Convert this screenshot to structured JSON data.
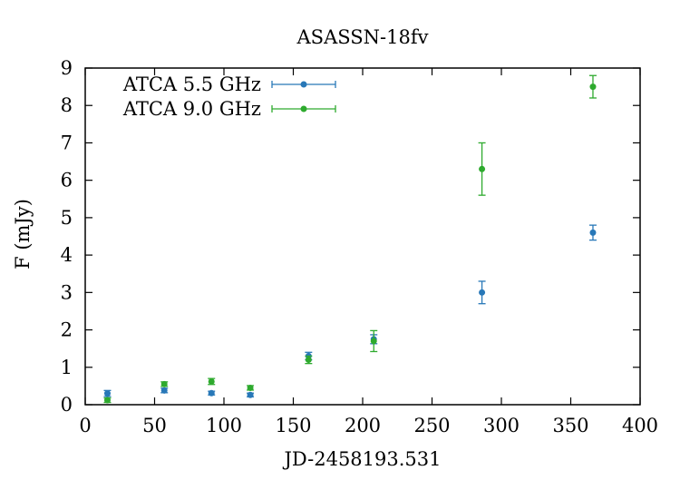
{
  "chart_data": {
    "type": "scatter",
    "title": "ASASSN-18fv",
    "xlabel": "JD-2458193.531",
    "ylabel": "F (mJy)",
    "xlim": [
      0,
      400
    ],
    "ylim": [
      0,
      9
    ],
    "x_ticks": [
      0,
      50,
      100,
      150,
      200,
      250,
      300,
      350,
      400
    ],
    "y_ticks": [
      0,
      1,
      2,
      3,
      4,
      5,
      6,
      7,
      8,
      9
    ],
    "grid": false,
    "legend": "top-left",
    "series": [
      {
        "name": "ATCA 5.5 GHz",
        "color": "#2878b8",
        "x": [
          16,
          57,
          91,
          119,
          161,
          208,
          286,
          366
        ],
        "y": [
          0.3,
          0.38,
          0.31,
          0.26,
          1.3,
          1.75,
          3.0,
          4.6
        ],
        "yerr": [
          0.08,
          0.06,
          0.05,
          0.05,
          0.1,
          0.12,
          0.3,
          0.2
        ]
      },
      {
        "name": "ATCA 9.0 GHz",
        "color": "#2eaa2e",
        "x": [
          16,
          57,
          91,
          119,
          161,
          208,
          286,
          366
        ],
        "y": [
          0.12,
          0.55,
          0.62,
          0.45,
          1.2,
          1.7,
          6.3,
          8.5
        ],
        "yerr": [
          0.06,
          0.06,
          0.08,
          0.06,
          0.1,
          0.28,
          0.7,
          0.3
        ]
      }
    ]
  }
}
